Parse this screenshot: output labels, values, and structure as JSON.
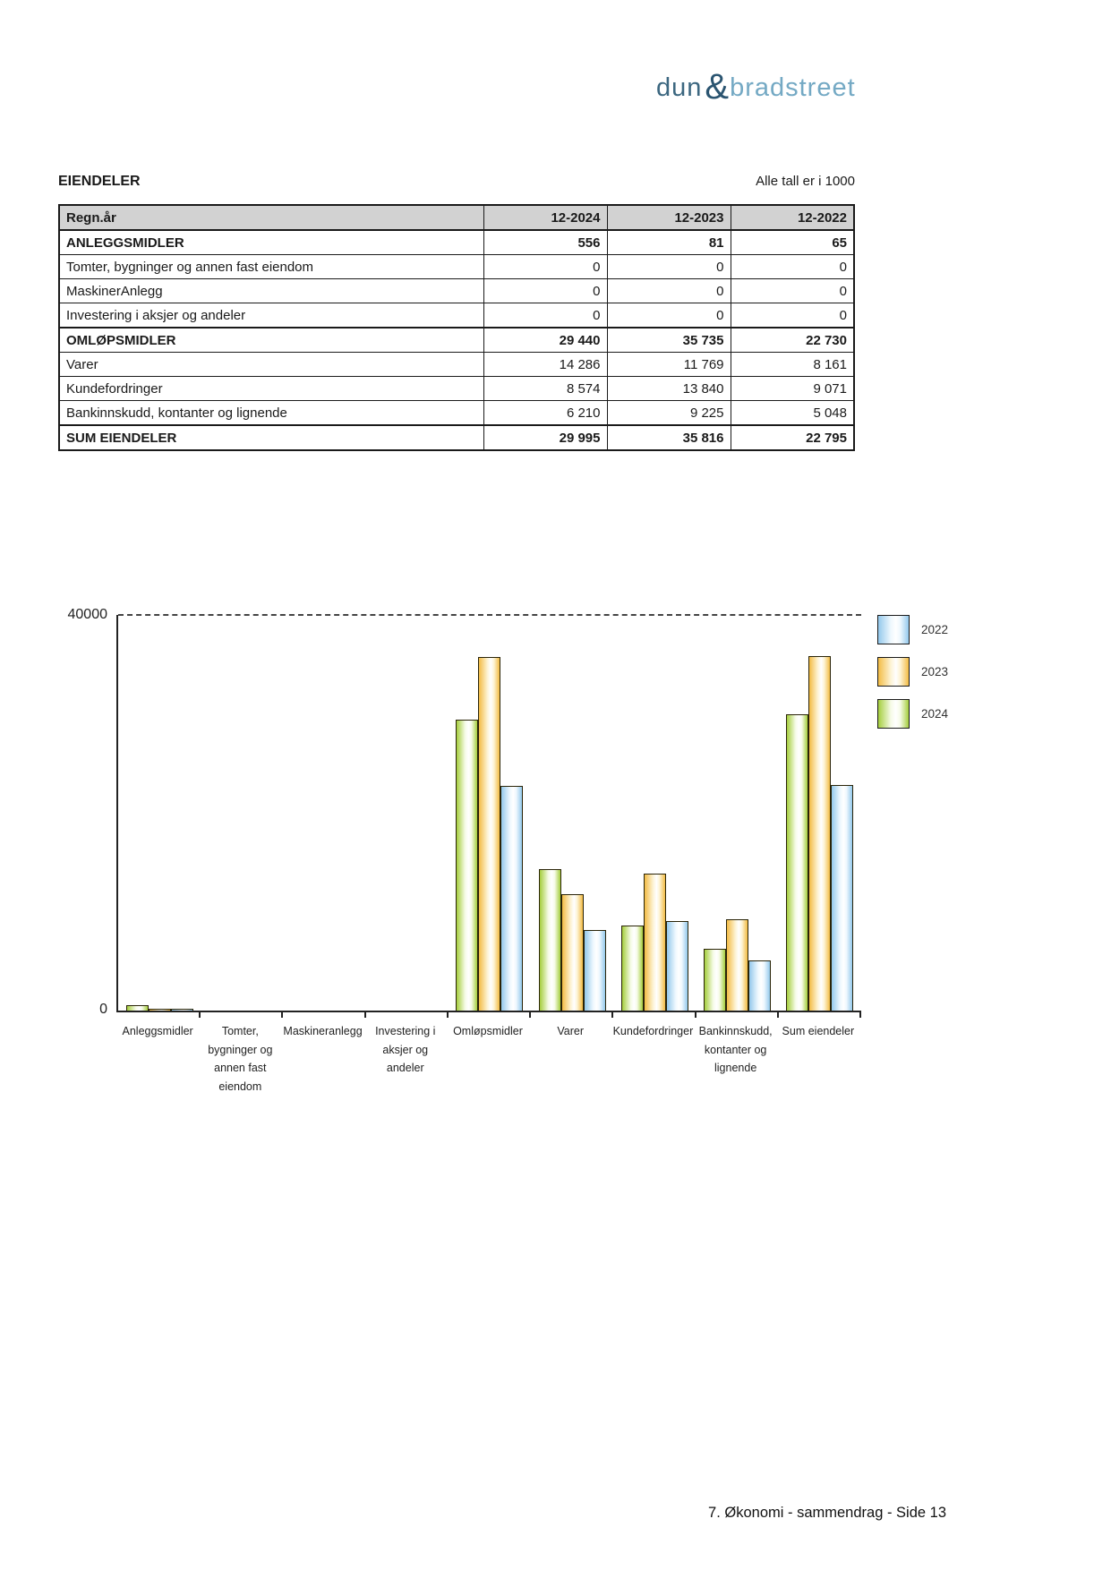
{
  "logo": {
    "part1": "dun",
    "amp": "&",
    "part2": "bradstreet"
  },
  "section": {
    "title": "EIENDELER",
    "units_note": "Alle tall er i 1000"
  },
  "table": {
    "header": [
      "Regn.år",
      "12-2024",
      "12-2023",
      "12-2022"
    ],
    "rows": [
      {
        "label": "ANLEGGSMIDLER",
        "values": [
          "556",
          "81",
          "65"
        ],
        "bold": true
      },
      {
        "label": "Tomter, bygninger og annen fast eiendom",
        "values": [
          "0",
          "0",
          "0"
        ],
        "bold": false
      },
      {
        "label": "MaskinerAnlegg",
        "values": [
          "0",
          "0",
          "0"
        ],
        "bold": false
      },
      {
        "label": "Investering i aksjer og andeler",
        "values": [
          "0",
          "0",
          "0"
        ],
        "bold": false
      },
      {
        "label": "OMLØPSMIDLER",
        "values": [
          "29 440",
          "35 735",
          "22 730"
        ],
        "bold": true
      },
      {
        "label": "Varer",
        "values": [
          "14 286",
          "11 769",
          "8 161"
        ],
        "bold": false
      },
      {
        "label": "Kundefordringer",
        "values": [
          "8 574",
          "13 840",
          "9 071"
        ],
        "bold": false
      },
      {
        "label": "Bankinnskudd, kontanter og lignende",
        "values": [
          "6 210",
          "9 225",
          "5 048"
        ],
        "bold": false
      },
      {
        "label": "SUM EIENDELER",
        "values": [
          "29 995",
          "35 816",
          "22 795"
        ],
        "bold": true
      }
    ]
  },
  "chart_data": {
    "type": "bar",
    "title": "",
    "xlabel": "",
    "ylabel": "",
    "categories": [
      "Anleggsmidler",
      "Tomter, bygninger og annen fast eiendom",
      "Maskineranlegg",
      "Investering i aksjer og andeler",
      "Omløpsmidler",
      "Varer",
      "Kundefordringer",
      "Bankinnskudd, kontanter og lignende",
      "Sum eiendeler"
    ],
    "series": [
      {
        "name": "2022",
        "edge_color": "#94c9ec",
        "light_color": "#eff8fe",
        "values": [
          65,
          0,
          0,
          0,
          22730,
          8161,
          9071,
          5048,
          22795
        ]
      },
      {
        "name": "2023",
        "edge_color": "#f3bc45",
        "light_color": "#fdf4d7",
        "values": [
          81,
          0,
          0,
          0,
          35735,
          11769,
          13840,
          9225,
          35816
        ]
      },
      {
        "name": "2024",
        "edge_color": "#a5ce3d",
        "light_color": "#f6fbe8",
        "values": [
          556,
          0,
          0,
          0,
          29440,
          14286,
          8574,
          6210,
          29995
        ]
      }
    ],
    "bar_display_order": [
      "2024",
      "2023",
      "2022"
    ],
    "ylim": [
      0,
      40000
    ],
    "ytick_labels": {
      "top": "40000",
      "bottom": "0"
    },
    "grid": "single dashed horizontal line at y-max only",
    "legend_position": "right"
  },
  "footer": {
    "text": "7. Økonomi - sammendrag - Side 13"
  }
}
